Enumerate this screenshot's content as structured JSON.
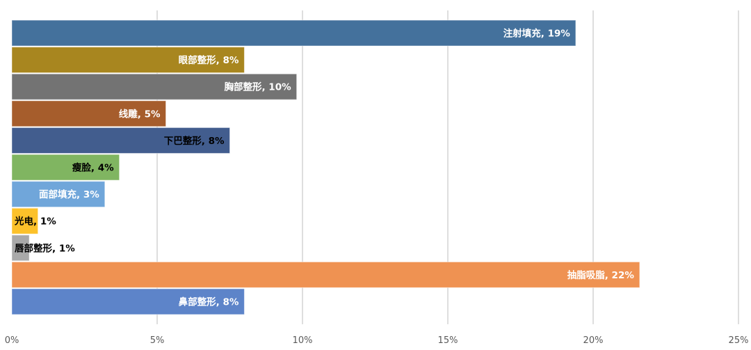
{
  "chart_data": {
    "type": "bar",
    "orientation": "horizontal",
    "categories": [
      "注射填充",
      "眼部整形",
      "胸部整形",
      "线雕",
      "下巴整形",
      "瘦脸",
      "面部填充",
      "光电",
      "唇部整形",
      "抽脂吸脂",
      "鼻部整形"
    ],
    "values": [
      19.4,
      8.0,
      9.8,
      5.3,
      7.5,
      3.7,
      3.2,
      0.9,
      0.6,
      21.6,
      8.0
    ],
    "data_labels": [
      "注射填充, 19%",
      "眼部整形, 8%",
      "胸部整形, 10%",
      "线雕, 5%",
      "下巴整形, 8%",
      "瘦脸, 4%",
      "面部填充, 3%",
      "光电, 1%",
      "唇部整形, 1%",
      "抽脂吸脂, 22%",
      "鼻部整形, 8%"
    ],
    "colors": [
      "#44719c",
      "#a8861f",
      "#737373",
      "#a65d2c",
      "#425d8e",
      "#80b561",
      "#70a6da",
      "#fcc12a",
      "#a9a9a9",
      "#ef9252",
      "#5d84c9"
    ],
    "label_colors": [
      "#ffffff",
      "#ffffff",
      "#ffffff",
      "#ffffff",
      "#000000",
      "#000000",
      "#ffffff",
      "#000000",
      "#000000",
      "#ffffff",
      "#ffffff"
    ],
    "x_ticks": [
      "0%",
      "5%",
      "10%",
      "15%",
      "20%",
      "25%"
    ],
    "xlim": [
      0,
      25
    ],
    "grid": "vertical",
    "legend": "none",
    "title": "",
    "xlabel": "",
    "ylabel": ""
  }
}
